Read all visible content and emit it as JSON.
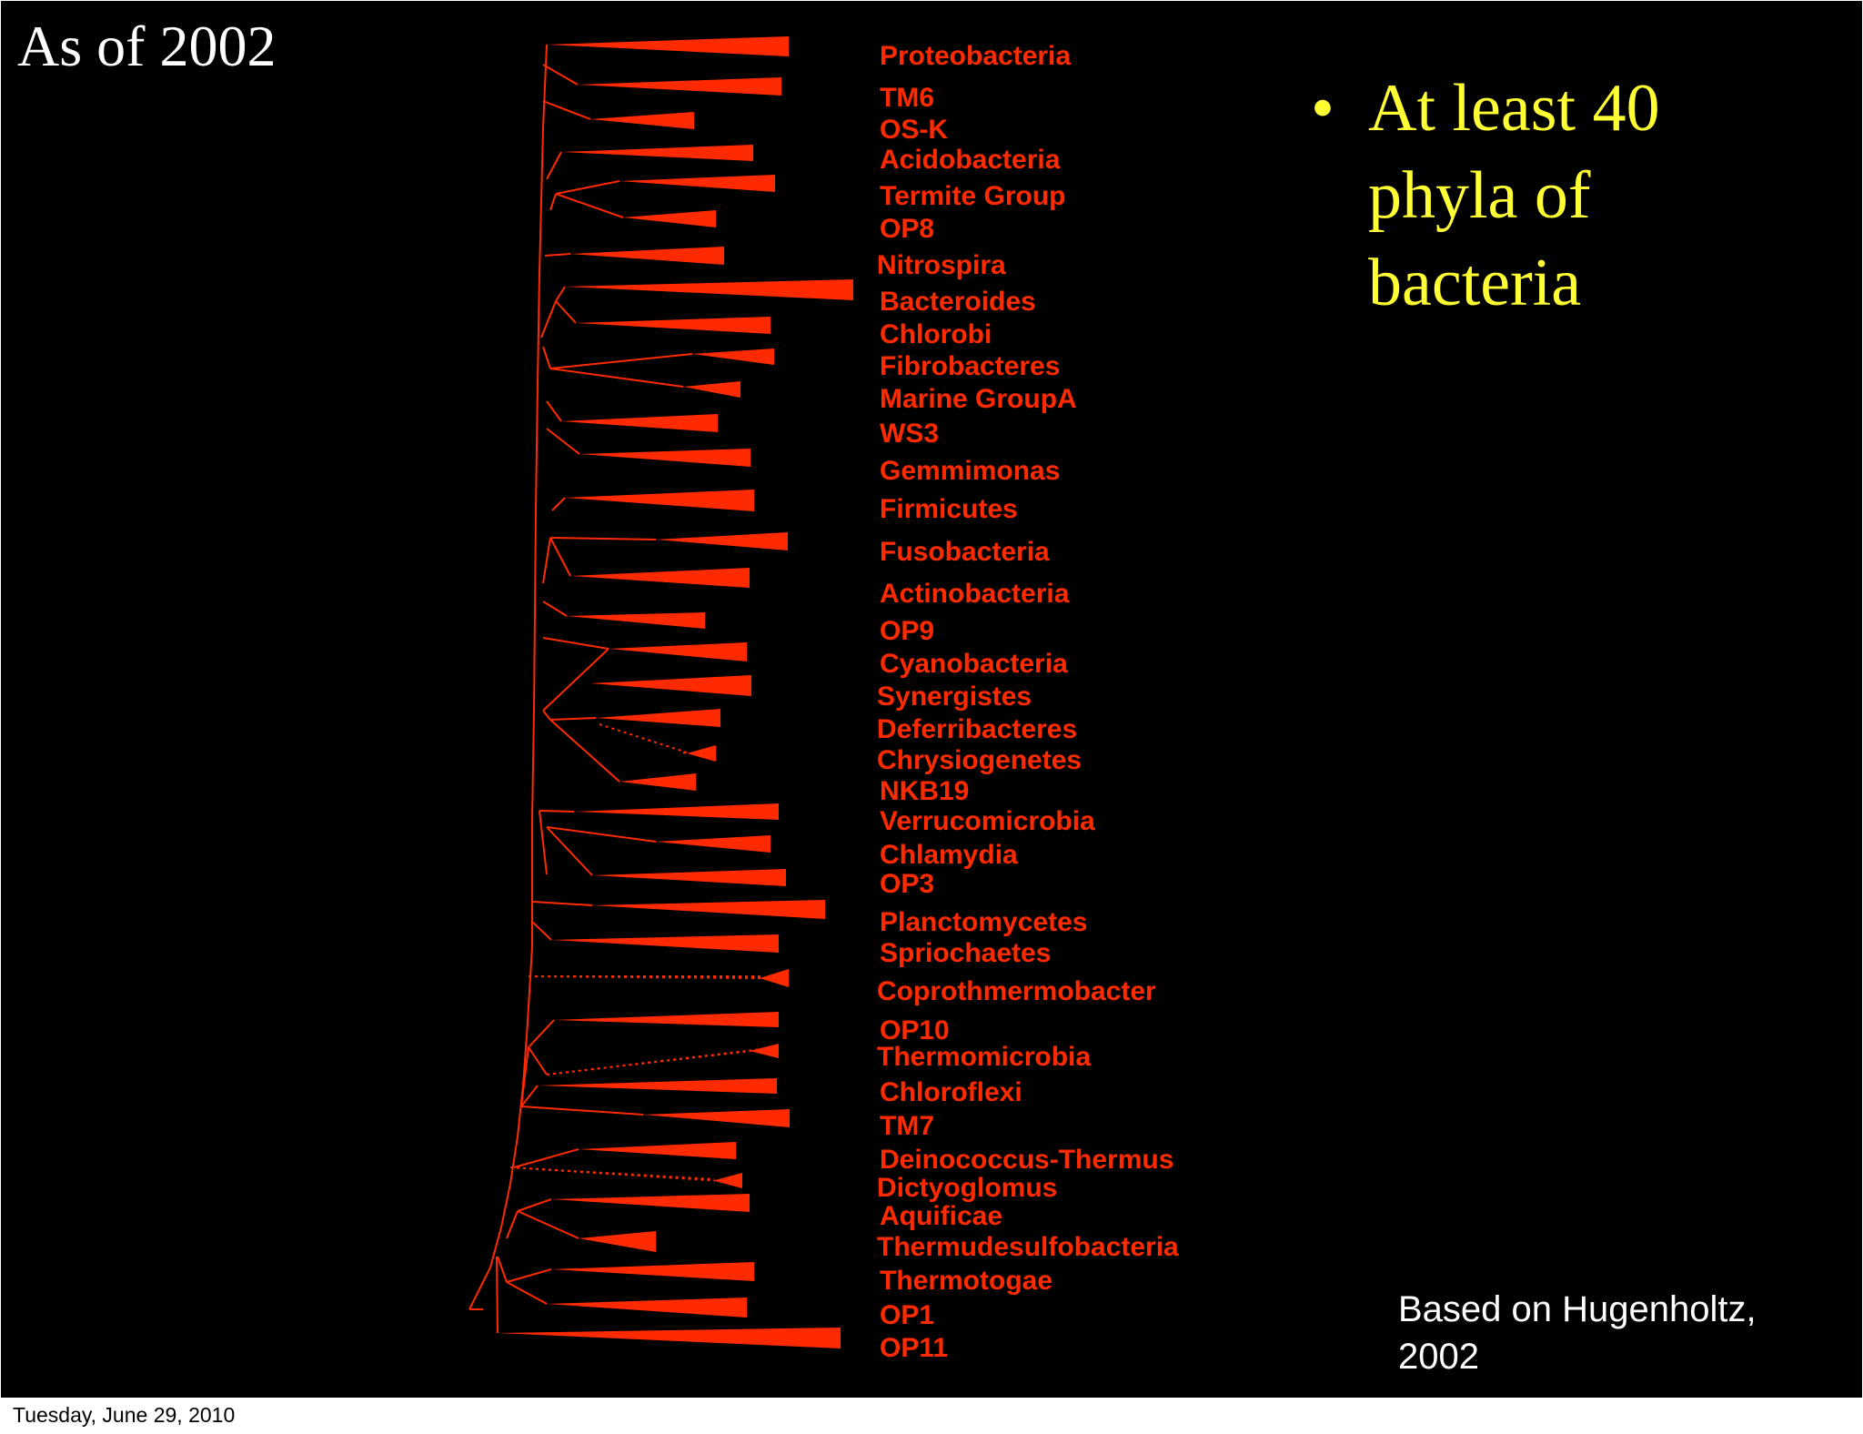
{
  "slide": {
    "title": "As of 2002",
    "bullet": {
      "marker": "•",
      "lines": [
        "At least 40",
        "phyla of",
        "bacteria"
      ]
    },
    "credit": [
      "Based on Hugenholtz,",
      "2002"
    ],
    "footer_date": "Tuesday, June 29, 2010"
  },
  "tree": {
    "color": "#ff2a00",
    "phyla": [
      "Proteobacteria",
      "TM6",
      "OS-K",
      "Acidobacteria",
      "Termite Group",
      "OP8",
      "Nitrospira",
      "Bacteroides",
      "Chlorobi",
      "Fibrobacteres",
      "Marine GroupA",
      "WS3",
      "Gemmimonas",
      "Firmicutes",
      "Fusobacteria",
      "Actinobacteria",
      "OP9",
      "Cyanobacteria",
      "Synergistes",
      "Deferribacteres",
      "Chrysiogenetes",
      "NKB19",
      "Verrucomicrobia",
      "Chlamydia",
      "OP3",
      "Planctomycetes",
      "Spriochaetes",
      "Coprothmermobacter",
      "OP10",
      "Thermomicrobia",
      "Chloroflexi",
      "TM7",
      "Deinococcus-Thermus",
      "Dictyoglomus",
      "Aquificae",
      "Thermudesulfobacteria",
      "Thermotogae",
      "OP1",
      "OP11"
    ]
  }
}
